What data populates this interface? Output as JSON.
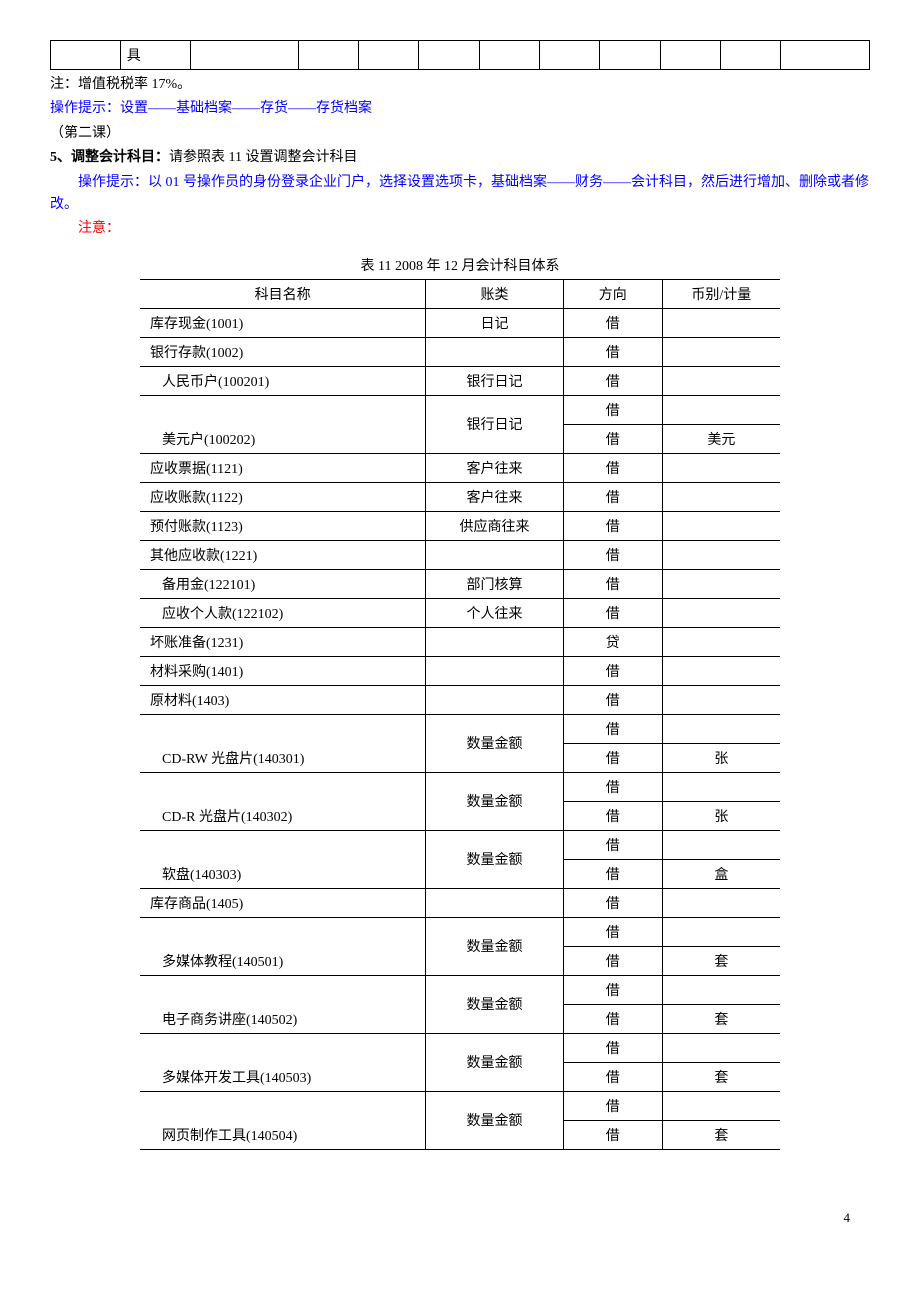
{
  "top_row": {
    "cell2": "具"
  },
  "note_line": "注：增值税税率 17%。",
  "hint1": "操作提示：设置——基础档案——存货——存货档案",
  "lesson": "（第二课）",
  "section5_label": "5、调整会计科目：",
  "section5_text": "请参照表 11 设置调整会计科目",
  "hint2": "操作提示：以 01 号操作员的身份登录企业门户，选择设置选项卡，基础档案——财务——会计科目，然后进行增加、删除或者修改。",
  "attention": "注意：",
  "table_caption": "表 11  2008 年 12 月会计科目体系",
  "headers": {
    "name": "科目名称",
    "type": "账类",
    "dir": "方向",
    "unit": "币别/计量"
  },
  "rows": [
    {
      "name": "库存现金(1001)",
      "type": "日记",
      "dir": "借",
      "unit": "",
      "sub": false,
      "rs": 1
    },
    {
      "name": "银行存款(1002)",
      "type": "",
      "dir": "借",
      "unit": "",
      "sub": false,
      "rs": 1
    },
    {
      "name": "人民币户(100201)",
      "type": "银行日记",
      "dir": "借",
      "unit": "",
      "sub": true,
      "rs": 1
    },
    {
      "name": "",
      "type": "银行日记",
      "dir": "借",
      "unit": "",
      "sub": true,
      "rs": 2,
      "first": true
    },
    {
      "name": "美元户(100202)",
      "type": "",
      "dir": "借",
      "unit": "美元",
      "sub": true,
      "cont": true
    },
    {
      "name": "应收票据(1121)",
      "type": "客户往来",
      "dir": "借",
      "unit": "",
      "sub": false,
      "rs": 1
    },
    {
      "name": "应收账款(1122)",
      "type": "客户往来",
      "dir": "借",
      "unit": "",
      "sub": false,
      "rs": 1
    },
    {
      "name": "预付账款(1123)",
      "type": "供应商往来",
      "dir": "借",
      "unit": "",
      "sub": false,
      "rs": 1
    },
    {
      "name": "其他应收款(1221)",
      "type": "",
      "dir": "借",
      "unit": "",
      "sub": false,
      "rs": 1
    },
    {
      "name": "备用金(122101)",
      "type": "部门核算",
      "dir": "借",
      "unit": "",
      "sub": true,
      "rs": 1
    },
    {
      "name": "应收个人款(122102)",
      "type": "个人往来",
      "dir": "借",
      "unit": "",
      "sub": true,
      "rs": 1
    },
    {
      "name": "坏账准备(1231)",
      "type": "",
      "dir": "贷",
      "unit": "",
      "sub": false,
      "rs": 1
    },
    {
      "name": "材料采购(1401)",
      "type": "",
      "dir": "借",
      "unit": "",
      "sub": false,
      "rs": 1
    },
    {
      "name": "原材料(1403)",
      "type": "",
      "dir": "借",
      "unit": "",
      "sub": false,
      "rs": 1
    },
    {
      "name": "",
      "type": "数量金额",
      "dir": "借",
      "unit": "",
      "sub": true,
      "rs": 2,
      "first": true
    },
    {
      "name": "CD-RW 光盘片(140301)",
      "type": "",
      "dir": "借",
      "unit": "张",
      "sub": true,
      "cont": true
    },
    {
      "name": "",
      "type": "数量金额",
      "dir": "借",
      "unit": "",
      "sub": true,
      "rs": 2,
      "first": true
    },
    {
      "name": "CD-R 光盘片(140302)",
      "type": "",
      "dir": "借",
      "unit": "张",
      "sub": true,
      "cont": true
    },
    {
      "name": "",
      "type": "数量金额",
      "dir": "借",
      "unit": "",
      "sub": true,
      "rs": 2,
      "first": true
    },
    {
      "name": "软盘(140303)",
      "type": "",
      "dir": "借",
      "unit": "盒",
      "sub": true,
      "cont": true
    },
    {
      "name": "库存商品(1405)",
      "type": "",
      "dir": "借",
      "unit": "",
      "sub": false,
      "rs": 1
    },
    {
      "name": "",
      "type": "数量金额",
      "dir": "借",
      "unit": "",
      "sub": true,
      "rs": 2,
      "first": true
    },
    {
      "name": "多媒体教程(140501)",
      "type": "",
      "dir": "借",
      "unit": "套",
      "sub": true,
      "cont": true
    },
    {
      "name": "",
      "type": "数量金额",
      "dir": "借",
      "unit": "",
      "sub": true,
      "rs": 2,
      "first": true
    },
    {
      "name": "电子商务讲座(140502)",
      "type": "",
      "dir": "借",
      "unit": "套",
      "sub": true,
      "cont": true
    },
    {
      "name": "",
      "type": "数量金额",
      "dir": "借",
      "unit": "",
      "sub": true,
      "rs": 2,
      "first": true
    },
    {
      "name": "多媒体开发工具(140503)",
      "type": "",
      "dir": "借",
      "unit": "套",
      "sub": true,
      "cont": true
    },
    {
      "name": "",
      "type": "数量金额",
      "dir": "借",
      "unit": "",
      "sub": true,
      "rs": 2,
      "first": true
    },
    {
      "name": "网页制作工具(140504)",
      "type": "",
      "dir": "借",
      "unit": "套",
      "sub": true,
      "cont": true
    }
  ],
  "page_number": "4"
}
